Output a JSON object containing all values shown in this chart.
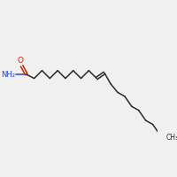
{
  "background_color": "#f0f0f0",
  "bond_color": "#2a2a2a",
  "oxygen_color": "#cc2200",
  "nitrogen_color": "#2244cc",
  "text_color": "#2a2a2a",
  "ch3_label": "CH₃",
  "nh2_label": "NH₂",
  "o_label": "O",
  "figsize": [
    2.0,
    2.0
  ],
  "dpi": 100,
  "lw": 1.1
}
